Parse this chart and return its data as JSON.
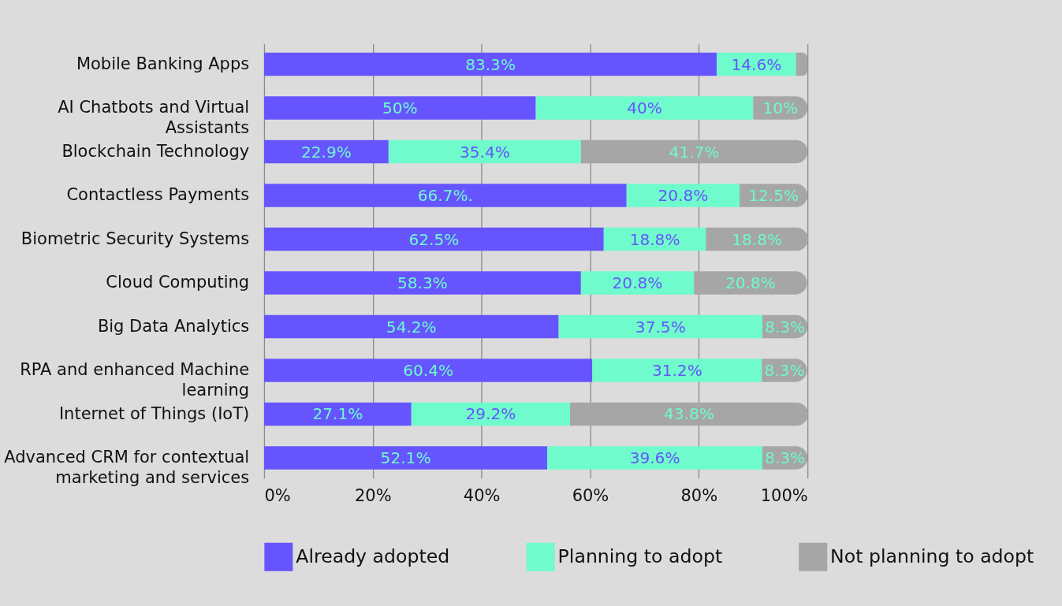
{
  "chart_data": {
    "type": "bar",
    "orientation": "horizontal",
    "stacked": true,
    "categories": [
      "Mobile Banking Apps",
      "AI Chatbots and Virtual Assistants",
      "Blockchain Technology",
      "Contactless Payments",
      "Biometric Security Systems",
      "Cloud Computing",
      "Big Data Analytics",
      "RPA and enhanced Machine learning",
      "Internet of Things (IoT)",
      "Advanced CRM for contextual marketing and services"
    ],
    "series": [
      {
        "name": "Already adopted",
        "color": "#6655ff",
        "values": [
          83.3,
          50,
          22.9,
          66.7,
          62.5,
          58.3,
          54.2,
          60.4,
          27.1,
          52.1
        ],
        "value_labels": [
          "83.3%",
          "50%",
          "22.9%",
          "66.7%.",
          "62.5%",
          "58.3%",
          "54.2%",
          "60.4%",
          "27.1%",
          "52.1%"
        ]
      },
      {
        "name": "Planning to adopt",
        "color": "#6ffbcb",
        "values": [
          14.6,
          40,
          35.4,
          20.8,
          18.8,
          20.8,
          37.5,
          31.2,
          29.2,
          39.6
        ],
        "value_labels": [
          "14.6%",
          "40%",
          "35.4%",
          "20.8%",
          "18.8%",
          "20.8%",
          "37.5%",
          "31.2%",
          "29.2%",
          "39.6%"
        ]
      },
      {
        "name": "Not planning to adopt",
        "color": "#a6a6a6",
        "values": [
          2.1,
          10,
          41.7,
          12.5,
          18.8,
          20.8,
          8.3,
          8.3,
          43.8,
          8.3
        ],
        "value_labels": [
          null,
          "10%",
          "41.7%",
          "12.5%",
          "18.8%",
          "20.8%",
          "8.3%",
          "8.3%",
          "43.8%",
          "8.3%"
        ]
      }
    ],
    "xlim": [
      0,
      100
    ],
    "xticks": [
      {
        "value": 0,
        "label": "0%"
      },
      {
        "value": 20,
        "label": "20%"
      },
      {
        "value": 40,
        "label": "40%"
      },
      {
        "value": 60,
        "label": "60%"
      },
      {
        "value": 80,
        "label": "80%"
      },
      {
        "value": 100,
        "label": "100%"
      }
    ],
    "grid": "x",
    "legend": "bottom"
  }
}
